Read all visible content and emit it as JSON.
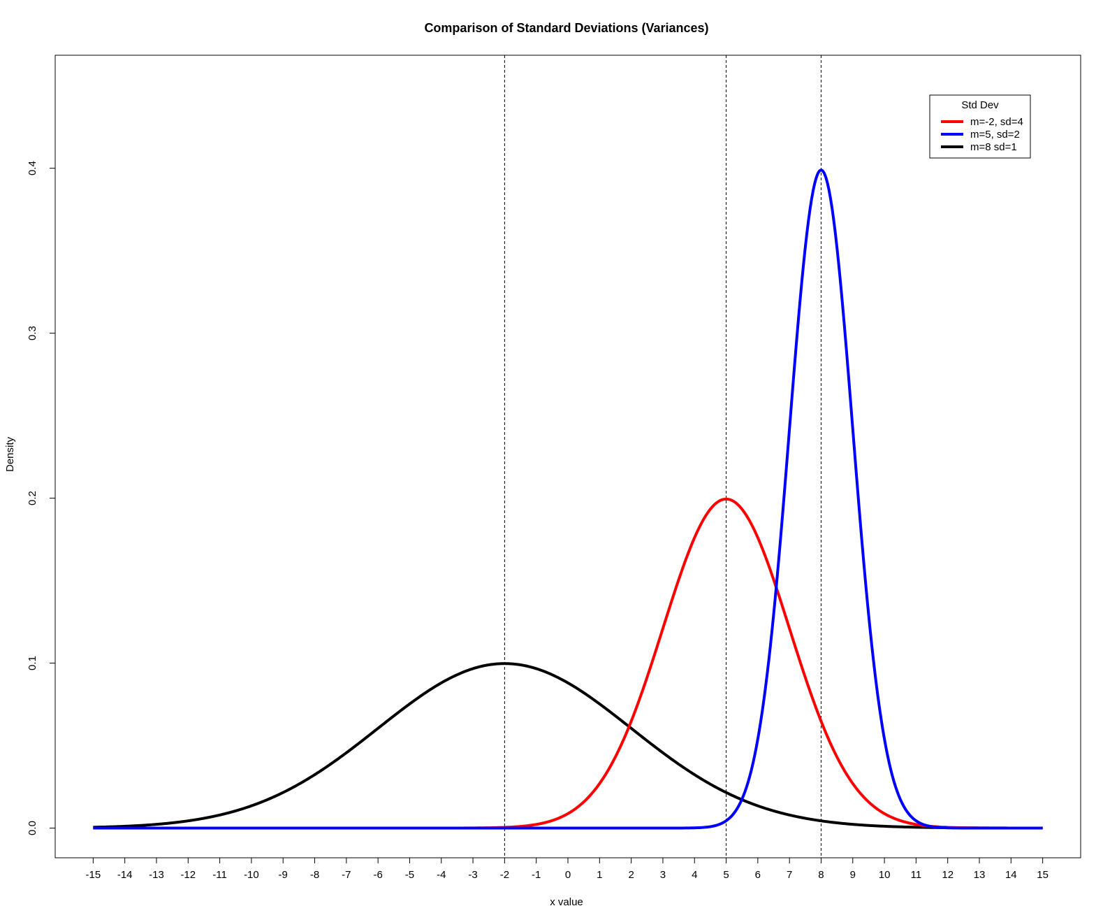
{
  "chart_data": {
    "type": "line",
    "title": "Comparison of Standard Deviations (Variances)",
    "xlabel": "x value",
    "ylabel": "Density",
    "xlim": [
      -16.2,
      16.2
    ],
    "ylim": [
      -0.018,
      0.4685
    ],
    "x_ticks": [
      -15,
      -14,
      -13,
      -12,
      -11,
      -10,
      -9,
      -8,
      -7,
      -6,
      -5,
      -4,
      -3,
      -2,
      -1,
      0,
      1,
      2,
      3,
      4,
      5,
      6,
      7,
      8,
      9,
      10,
      11,
      12,
      13,
      14,
      15
    ],
    "x_tick_labels": [
      "-15",
      "-14",
      "-13",
      "-12",
      "-11",
      "-10",
      "-9",
      "-8",
      "-7",
      "-6",
      "-5",
      "-4",
      "-3",
      "-2",
      "-1",
      "0",
      "1",
      "2",
      "3",
      "4",
      "5",
      "6",
      "7",
      "8",
      "9",
      "10",
      "11",
      "12",
      "13",
      "14",
      "15"
    ],
    "y_ticks": [
      0.0,
      0.1,
      0.2,
      0.3,
      0.4
    ],
    "y_tick_labels": [
      "0.0",
      "0.1",
      "0.2",
      "0.3",
      "0.4"
    ],
    "vlines": [
      -2,
      5,
      8
    ],
    "grid": false,
    "legend": {
      "title": "Std Dev",
      "placement": "top-right",
      "entries": [
        "m=-2, sd=4",
        "m=5, sd=2",
        "m=8 sd=1"
      ]
    },
    "series": [
      {
        "name": "m=-2, sd=4",
        "color": "#000000",
        "mean": -2,
        "sd": 4
      },
      {
        "name": "m=5, sd=2",
        "color": "#ff0000",
        "mean": 5,
        "sd": 2
      },
      {
        "name": "m=8 sd=1",
        "color": "#0000ff",
        "mean": 8,
        "sd": 1
      }
    ],
    "legend_colors": [
      "#ff0000",
      "#0000ff",
      "#000000"
    ],
    "x_range": [
      -15,
      15
    ]
  }
}
